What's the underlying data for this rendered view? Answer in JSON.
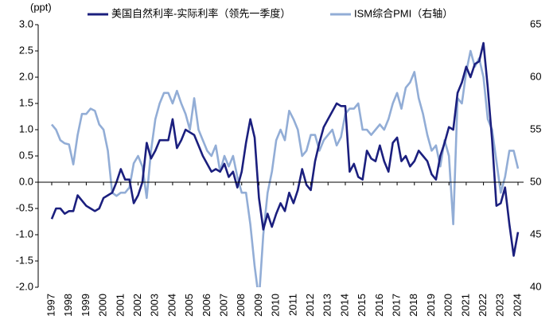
{
  "chart_data": {
    "type": "line",
    "y_label": "(ppt)",
    "categories": [
      "1997",
      null,
      null,
      null,
      "1998",
      null,
      null,
      null,
      "1999",
      null,
      null,
      null,
      "2000",
      null,
      null,
      null,
      "2001",
      null,
      null,
      null,
      "2002",
      null,
      null,
      null,
      "2003",
      null,
      null,
      null,
      "2004",
      null,
      null,
      null,
      "2005",
      null,
      null,
      null,
      "2006",
      null,
      null,
      null,
      "2007",
      null,
      null,
      null,
      "2008",
      null,
      null,
      null,
      "2009",
      null,
      null,
      null,
      "2010",
      null,
      null,
      null,
      "2011",
      null,
      null,
      null,
      "2012",
      null,
      null,
      null,
      "2013",
      null,
      null,
      null,
      "2014",
      null,
      null,
      null,
      "2015",
      null,
      null,
      null,
      "2016",
      null,
      null,
      null,
      "2017",
      null,
      null,
      null,
      "2018",
      null,
      null,
      null,
      "2019",
      null,
      null,
      null,
      "2020",
      null,
      null,
      null,
      "2021",
      null,
      null,
      null,
      "2022",
      null,
      null,
      null,
      "2023",
      null,
      null,
      null,
      "2024"
    ],
    "series": [
      {
        "name": "美国自然利率-实际利率（领先一季度）",
        "color": "#1b1f7e",
        "axis": "y",
        "values": [
          -0.7,
          -0.5,
          -0.5,
          -0.6,
          -0.55,
          -0.55,
          -0.25,
          -0.35,
          -0.45,
          -0.5,
          -0.55,
          -0.5,
          -0.3,
          -0.25,
          -0.2,
          0.0,
          0.25,
          0.05,
          0.05,
          -0.4,
          -0.25,
          0.0,
          0.75,
          0.45,
          0.6,
          0.8,
          0.8,
          0.8,
          1.2,
          0.65,
          0.8,
          1.0,
          0.95,
          0.9,
          0.7,
          0.5,
          0.35,
          0.2,
          0.25,
          0.2,
          0.35,
          0.1,
          0.2,
          -0.1,
          0.2,
          0.75,
          1.2,
          0.85,
          -0.3,
          -0.9,
          -0.6,
          -0.85,
          -0.6,
          -0.4,
          -0.55,
          -0.2,
          -0.4,
          -0.15,
          0.25,
          -0.05,
          -0.15,
          0.4,
          0.75,
          1.05,
          1.2,
          1.35,
          1.5,
          1.45,
          1.45,
          0.2,
          0.35,
          0.1,
          0.05,
          0.6,
          0.45,
          0.4,
          0.7,
          0.4,
          0.2,
          0.75,
          0.85,
          0.4,
          0.5,
          0.3,
          0.4,
          0.6,
          0.5,
          0.4,
          0.15,
          0.05,
          0.5,
          0.75,
          1.05,
          1.0,
          1.7,
          1.9,
          2.2,
          2.0,
          2.25,
          2.3,
          2.65,
          1.8,
          0.8,
          -0.45,
          -0.4,
          -0.1,
          -0.8,
          -1.4,
          -0.95
        ]
      },
      {
        "name": "ISM综合PMI（右轴）",
        "color": "#92add6",
        "axis": "y2",
        "values": [
          55.5,
          55,
          54,
          53.7,
          53.6,
          51.7,
          54.5,
          56.5,
          56.5,
          57,
          56.8,
          55.5,
          55,
          53,
          49,
          48.7,
          49,
          49,
          49.5,
          51.8,
          52.5,
          51.5,
          48.5,
          53,
          56,
          57.5,
          58.5,
          58.5,
          57.5,
          58.7,
          57.5,
          56.5,
          55,
          58,
          55,
          54,
          53,
          52.5,
          53.5,
          51,
          52.5,
          51.5,
          52.5,
          50.5,
          49,
          49,
          46,
          42,
          38.8,
          45,
          49,
          51,
          54,
          55,
          54,
          56.8,
          56,
          55,
          52.5,
          53,
          54.5,
          54.5,
          53,
          54,
          54.5,
          55,
          53.5,
          54.3,
          56.5,
          57,
          57,
          57.5,
          55,
          55,
          54.5,
          55,
          55.5,
          55,
          56,
          57.5,
          58.5,
          57,
          59,
          59.5,
          60.5,
          58,
          56.5,
          54.5,
          53,
          53.5,
          51.5,
          54,
          52.5,
          46,
          58,
          57.5,
          60.5,
          62.5,
          61,
          61.8,
          60,
          56,
          55,
          52,
          49,
          50.5,
          53,
          53,
          51.3
        ]
      }
    ],
    "ylim": [
      -2,
      3
    ],
    "yticks": [
      {
        "value": -2,
        "label": "-2.0"
      },
      -1.5,
      {
        "value": -1,
        "label": "-1.0"
      },
      -0.5,
      {
        "value": 0,
        "label": "0.0"
      },
      0.5,
      {
        "value": 1,
        "label": "1.0"
      },
      1.5,
      {
        "value": 2,
        "label": "2.0"
      },
      2.5,
      {
        "value": 3,
        "label": "3.0"
      }
    ],
    "y2lim": [
      40,
      65
    ],
    "y2ticks": [
      40,
      45,
      50,
      55,
      60,
      65
    ]
  }
}
